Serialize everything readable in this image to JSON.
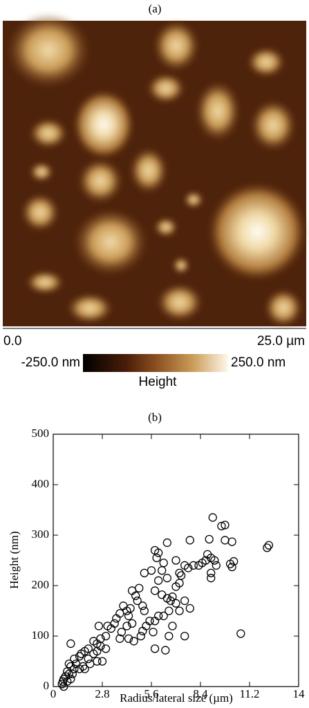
{
  "panel_a": {
    "label": "(a)",
    "x_start": "0.0",
    "x_end": "25.0 µm",
    "colorbar": {
      "min_label": "-250.0 nm",
      "max_label": "250.0 nm",
      "title": "Height"
    }
  },
  "chart_data": {
    "type": "scatter",
    "title": "(b)",
    "x_label": "Radius/lateral size (µm)",
    "y_label": "Height (nm)",
    "xlim": [
      0,
      14
    ],
    "xticks": [
      0,
      2.8,
      5.6,
      8.4,
      11.2,
      14
    ],
    "ylim": [
      0,
      500
    ],
    "yticks": [
      0,
      100,
      200,
      300,
      400,
      500
    ],
    "color": "#000000",
    "x": [
      9.1,
      9.6,
      9.8,
      9.8,
      10.2,
      10.3,
      10.1,
      10.2,
      12.2,
      12.3,
      10.7,
      8.9,
      8.8,
      9.0,
      9.2,
      9.3,
      8.7,
      9.0,
      9.0,
      8.5,
      8.3,
      8.0,
      7.7,
      7.5,
      7.2,
      7.3,
      7.0,
      6.5,
      7.8,
      7.0,
      7.2,
      6.3,
      6.0,
      5.8,
      5.6,
      5.9,
      6.2,
      6.5,
      6.0,
      5.8,
      5.2,
      6.2,
      6.5,
      6.8,
      7.0,
      6.7,
      7.5,
      7.8,
      7.2,
      6.6,
      6.3,
      6.0,
      5.8,
      5.5,
      5.3,
      5.7,
      5.0,
      5.1,
      4.6,
      6.8,
      7.5,
      6.6,
      6.4,
      5.8,
      4.9,
      4.5,
      4.2,
      4.4,
      4.3,
      4.0,
      3.8,
      3.6,
      3.5,
      4.7,
      4.8,
      5.1,
      5.2,
      4.5,
      4.2,
      3.9,
      3.3,
      3.1,
      2.6,
      3.0,
      2.7,
      2.5,
      3.0,
      2.7,
      2.5,
      2.3,
      2.0,
      2.3,
      2.0,
      3.8,
      4.3,
      2.5,
      2.8,
      1.8,
      1.6,
      1.5,
      1.2,
      1.0,
      1.3,
      1.7,
      1.5,
      1.2,
      1.0,
      0.9,
      0.8,
      0.9,
      0.7,
      0.6,
      0.55,
      0.5,
      0.6,
      0.8,
      1.0,
      1.1,
      1.8,
      2.1
    ],
    "values": [
      335,
      318,
      320,
      290,
      287,
      248,
      243,
      237,
      275,
      280,
      105,
      292,
      262,
      255,
      250,
      240,
      250,
      215,
      225,
      245,
      240,
      240,
      235,
      240,
      225,
      220,
      250,
      285,
      290,
      198,
      205,
      245,
      265,
      270,
      230,
      255,
      230,
      215,
      210,
      190,
      225,
      182,
      175,
      178,
      165,
      170,
      170,
      155,
      150,
      150,
      140,
      140,
      130,
      130,
      120,
      108,
      100,
      110,
      90,
      120,
      100,
      100,
      72,
      75,
      195,
      190,
      150,
      155,
      140,
      160,
      145,
      135,
      125,
      180,
      170,
      160,
      150,
      125,
      120,
      108,
      115,
      120,
      120,
      100,
      95,
      85,
      75,
      80,
      70,
      65,
      75,
      90,
      55,
      95,
      95,
      50,
      50,
      70,
      65,
      60,
      55,
      85,
      45,
      40,
      35,
      35,
      40,
      45,
      30,
      25,
      20,
      15,
      10,
      5,
      0,
      10,
      15,
      25,
      35,
      45
    ]
  }
}
